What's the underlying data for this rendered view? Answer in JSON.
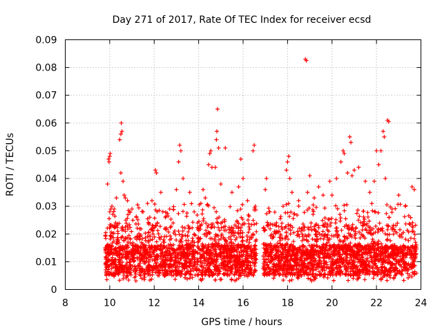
{
  "chart_data": {
    "type": "scatter",
    "title": "Day 271 of 2017, Rate Of TEC Index for receiver ecsd",
    "xlabel": "GPS time / hours",
    "ylabel": "ROTI / TECUs",
    "xlim": [
      8,
      24
    ],
    "ylim": [
      0,
      0.09
    ],
    "xticks": [
      8,
      10,
      12,
      14,
      16,
      18,
      20,
      22,
      24
    ],
    "xtick_labels": [
      "8",
      "10",
      "12",
      "14",
      "16",
      "18",
      "20",
      "22",
      "24"
    ],
    "yticks": [
      0,
      0.01,
      0.02,
      0.03,
      0.04,
      0.05,
      0.06,
      0.07,
      0.08,
      0.09
    ],
    "ytick_labels": [
      "0",
      "0.01",
      "0.02",
      "0.03",
      "0.04",
      "0.05",
      "0.06",
      "0.07",
      "0.08",
      "0.09"
    ],
    "grid": true,
    "marker": "+",
    "series": [
      {
        "name": "ROTI",
        "color": "#ff0000",
        "points": [
          [
            9.9,
            0.038
          ],
          [
            9.95,
            0.047
          ],
          [
            9.97,
            0.046
          ],
          [
            10.0,
            0.048
          ],
          [
            10.02,
            0.049
          ],
          [
            10.0,
            0.028
          ],
          [
            10.05,
            0.029
          ],
          [
            10.1,
            0.03
          ],
          [
            10.2,
            0.029
          ],
          [
            10.3,
            0.033
          ],
          [
            10.45,
            0.054
          ],
          [
            10.5,
            0.056
          ],
          [
            10.52,
            0.06
          ],
          [
            10.55,
            0.057
          ],
          [
            10.5,
            0.042
          ],
          [
            10.6,
            0.039
          ],
          [
            10.65,
            0.034
          ],
          [
            10.7,
            0.033
          ],
          [
            10.8,
            0.032
          ],
          [
            10.9,
            0.028
          ],
          [
            11.0,
            0.029
          ],
          [
            11.2,
            0.026
          ],
          [
            11.5,
            0.028
          ],
          [
            11.7,
            0.031
          ],
          [
            11.9,
            0.032
          ],
          [
            12.05,
            0.043
          ],
          [
            12.1,
            0.042
          ],
          [
            12.3,
            0.035
          ],
          [
            12.5,
            0.026
          ],
          [
            12.7,
            0.029
          ],
          [
            13.0,
            0.036
          ],
          [
            13.1,
            0.046
          ],
          [
            13.15,
            0.052
          ],
          [
            13.2,
            0.05
          ],
          [
            13.3,
            0.04
          ],
          [
            13.6,
            0.035
          ],
          [
            13.8,
            0.028
          ],
          [
            14.0,
            0.022
          ],
          [
            14.1,
            0.031
          ],
          [
            14.2,
            0.036
          ],
          [
            14.3,
            0.033
          ],
          [
            14.45,
            0.045
          ],
          [
            14.5,
            0.049
          ],
          [
            14.55,
            0.05
          ],
          [
            14.6,
            0.044
          ],
          [
            14.75,
            0.044
          ],
          [
            14.8,
            0.054
          ],
          [
            14.82,
            0.057
          ],
          [
            14.85,
            0.065
          ],
          [
            14.9,
            0.051
          ],
          [
            15.0,
            0.038
          ],
          [
            15.2,
            0.051
          ],
          [
            15.5,
            0.035
          ],
          [
            15.8,
            0.037
          ],
          [
            15.9,
            0.047
          ],
          [
            16.0,
            0.04
          ],
          [
            16.2,
            0.032
          ],
          [
            16.45,
            0.05
          ],
          [
            16.5,
            0.052
          ],
          [
            16.55,
            0.03
          ],
          [
            17.0,
            0.036
          ],
          [
            17.05,
            0.04
          ],
          [
            17.2,
            0.028
          ],
          [
            17.5,
            0.024
          ],
          [
            17.8,
            0.03
          ],
          [
            17.95,
            0.043
          ],
          [
            18.0,
            0.046
          ],
          [
            18.05,
            0.048
          ],
          [
            18.1,
            0.04
          ],
          [
            18.2,
            0.035
          ],
          [
            18.5,
            0.032
          ],
          [
            18.8,
            0.083
          ],
          [
            18.85,
            0.0825
          ],
          [
            18.9,
            0.035
          ],
          [
            19.0,
            0.041
          ],
          [
            19.2,
            0.033
          ],
          [
            19.4,
            0.037
          ],
          [
            19.6,
            0.034
          ],
          [
            19.9,
            0.039
          ],
          [
            20.0,
            0.034
          ],
          [
            20.2,
            0.04
          ],
          [
            20.4,
            0.046
          ],
          [
            20.5,
            0.05
          ],
          [
            20.55,
            0.049
          ],
          [
            20.7,
            0.042
          ],
          [
            20.8,
            0.055
          ],
          [
            20.85,
            0.053
          ],
          [
            20.9,
            0.041
          ],
          [
            21.0,
            0.043
          ],
          [
            21.2,
            0.044
          ],
          [
            21.5,
            0.039
          ],
          [
            21.7,
            0.035
          ],
          [
            21.9,
            0.039
          ],
          [
            22.0,
            0.05
          ],
          [
            22.1,
            0.045
          ],
          [
            22.2,
            0.05
          ],
          [
            22.3,
            0.057
          ],
          [
            22.35,
            0.055
          ],
          [
            22.4,
            0.04
          ],
          [
            22.5,
            0.061
          ],
          [
            22.55,
            0.0605
          ],
          [
            22.7,
            0.029
          ],
          [
            23.0,
            0.034
          ],
          [
            23.3,
            0.03
          ],
          [
            23.6,
            0.037
          ],
          [
            23.7,
            0.036
          ]
        ]
      }
    ],
    "dense_band": {
      "note": "dense scattered values between roughly 0.003 and 0.03 TECU",
      "segments": [
        [
          9.8,
          16.6
        ],
        [
          16.9,
          23.8
        ]
      ],
      "y_range": [
        0.003,
        0.03
      ]
    }
  }
}
